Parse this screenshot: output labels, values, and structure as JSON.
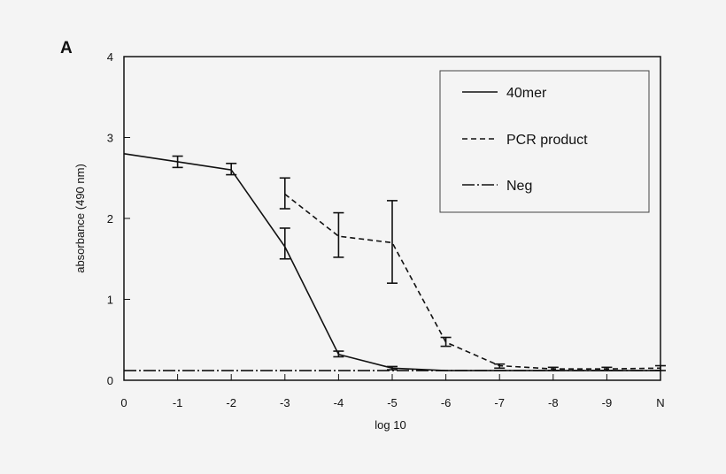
{
  "chart_data": {
    "type": "line",
    "panel_label": "A",
    "xlabel": "log 10",
    "ylabel": "absorbance (490 nm)",
    "x_tick_labels": [
      "0",
      "-1",
      "-2",
      "-3",
      "-4",
      "-5",
      "-6",
      "-7",
      "-8",
      "-9",
      "N"
    ],
    "y_tick_labels": [
      "0",
      "1",
      "2",
      "3",
      "4"
    ],
    "ylim": [
      0,
      4
    ],
    "grid": false,
    "legend_position": "top-right",
    "series": [
      {
        "name": "40mer",
        "style": "solid",
        "x": [
          "0",
          "-1",
          "-2",
          "-3",
          "-4",
          "-5",
          "-6",
          "-7",
          "-8",
          "-9",
          "N"
        ],
        "values": [
          2.8,
          2.7,
          2.6,
          1.65,
          0.32,
          0.15,
          0.12,
          0.12,
          0.12,
          0.12,
          0.12
        ],
        "err_low": [
          null,
          2.63,
          2.54,
          1.5,
          0.29,
          0.13,
          null,
          null,
          null,
          null,
          null
        ],
        "err_high": [
          null,
          2.77,
          2.68,
          1.88,
          0.36,
          0.17,
          null,
          null,
          null,
          null,
          null
        ]
      },
      {
        "name": "PCR product",
        "style": "dashed",
        "x": [
          "-3",
          "-4",
          "-5",
          "-6",
          "-7",
          "-8",
          "-9",
          "N"
        ],
        "values": [
          2.3,
          1.78,
          1.7,
          0.47,
          0.18,
          0.14,
          0.14,
          0.15
        ],
        "err_low": [
          2.12,
          1.52,
          1.2,
          0.42,
          0.15,
          0.12,
          0.12,
          0.12
        ],
        "err_high": [
          2.5,
          2.07,
          2.22,
          0.53,
          0.2,
          0.16,
          0.16,
          0.18
        ]
      },
      {
        "name": "Neg",
        "style": "dash-dot",
        "x": [
          "0",
          "N"
        ],
        "values": [
          0.12,
          0.12
        ]
      }
    ]
  }
}
